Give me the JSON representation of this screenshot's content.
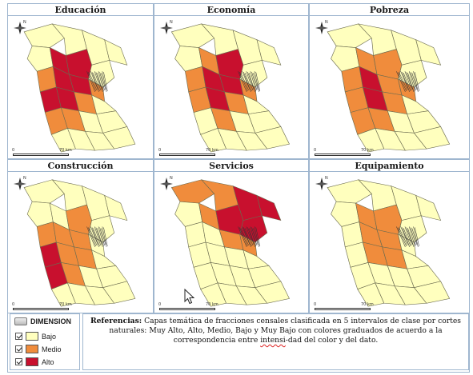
{
  "panels": [
    {
      "title": "Educación",
      "variant": "educacion"
    },
    {
      "title": "Economía",
      "variant": "economia"
    },
    {
      "title": "Pobreza",
      "variant": "pobreza"
    },
    {
      "title": "Construcción",
      "variant": "construccion"
    },
    {
      "title": "Servicios",
      "variant": "servicios"
    },
    {
      "title": "Equipamiento",
      "variant": "equipamiento"
    }
  ],
  "scale": {
    "zero": "0",
    "max": "70 km"
  },
  "north_label": "N",
  "legend": {
    "title": "DIMENSION",
    "items": [
      {
        "label": "Bajo",
        "color": "#ffffbe"
      },
      {
        "label": "Medio",
        "color": "#f08c3c"
      },
      {
        "label": "Alto",
        "color": "#c8102e"
      }
    ]
  },
  "references": {
    "label": "Referencias:",
    "text_part1": " Capas temática de fracciones censales clasificada en 5 intervalos de clase por cortes naturales: Muy Alto, Alto, Medio, Bajo y Muy Bajo con colores graduados de acuerdo a la correspondencia entre ",
    "text_squiggle": "intensi",
    "text_part2": "-dad del color y del dato."
  },
  "colors": {
    "low": "#ffffbe",
    "medium": "#f08c3c",
    "high": "#c8102e",
    "border": "#9fb6cf",
    "outline": "#6b6b4f"
  }
}
